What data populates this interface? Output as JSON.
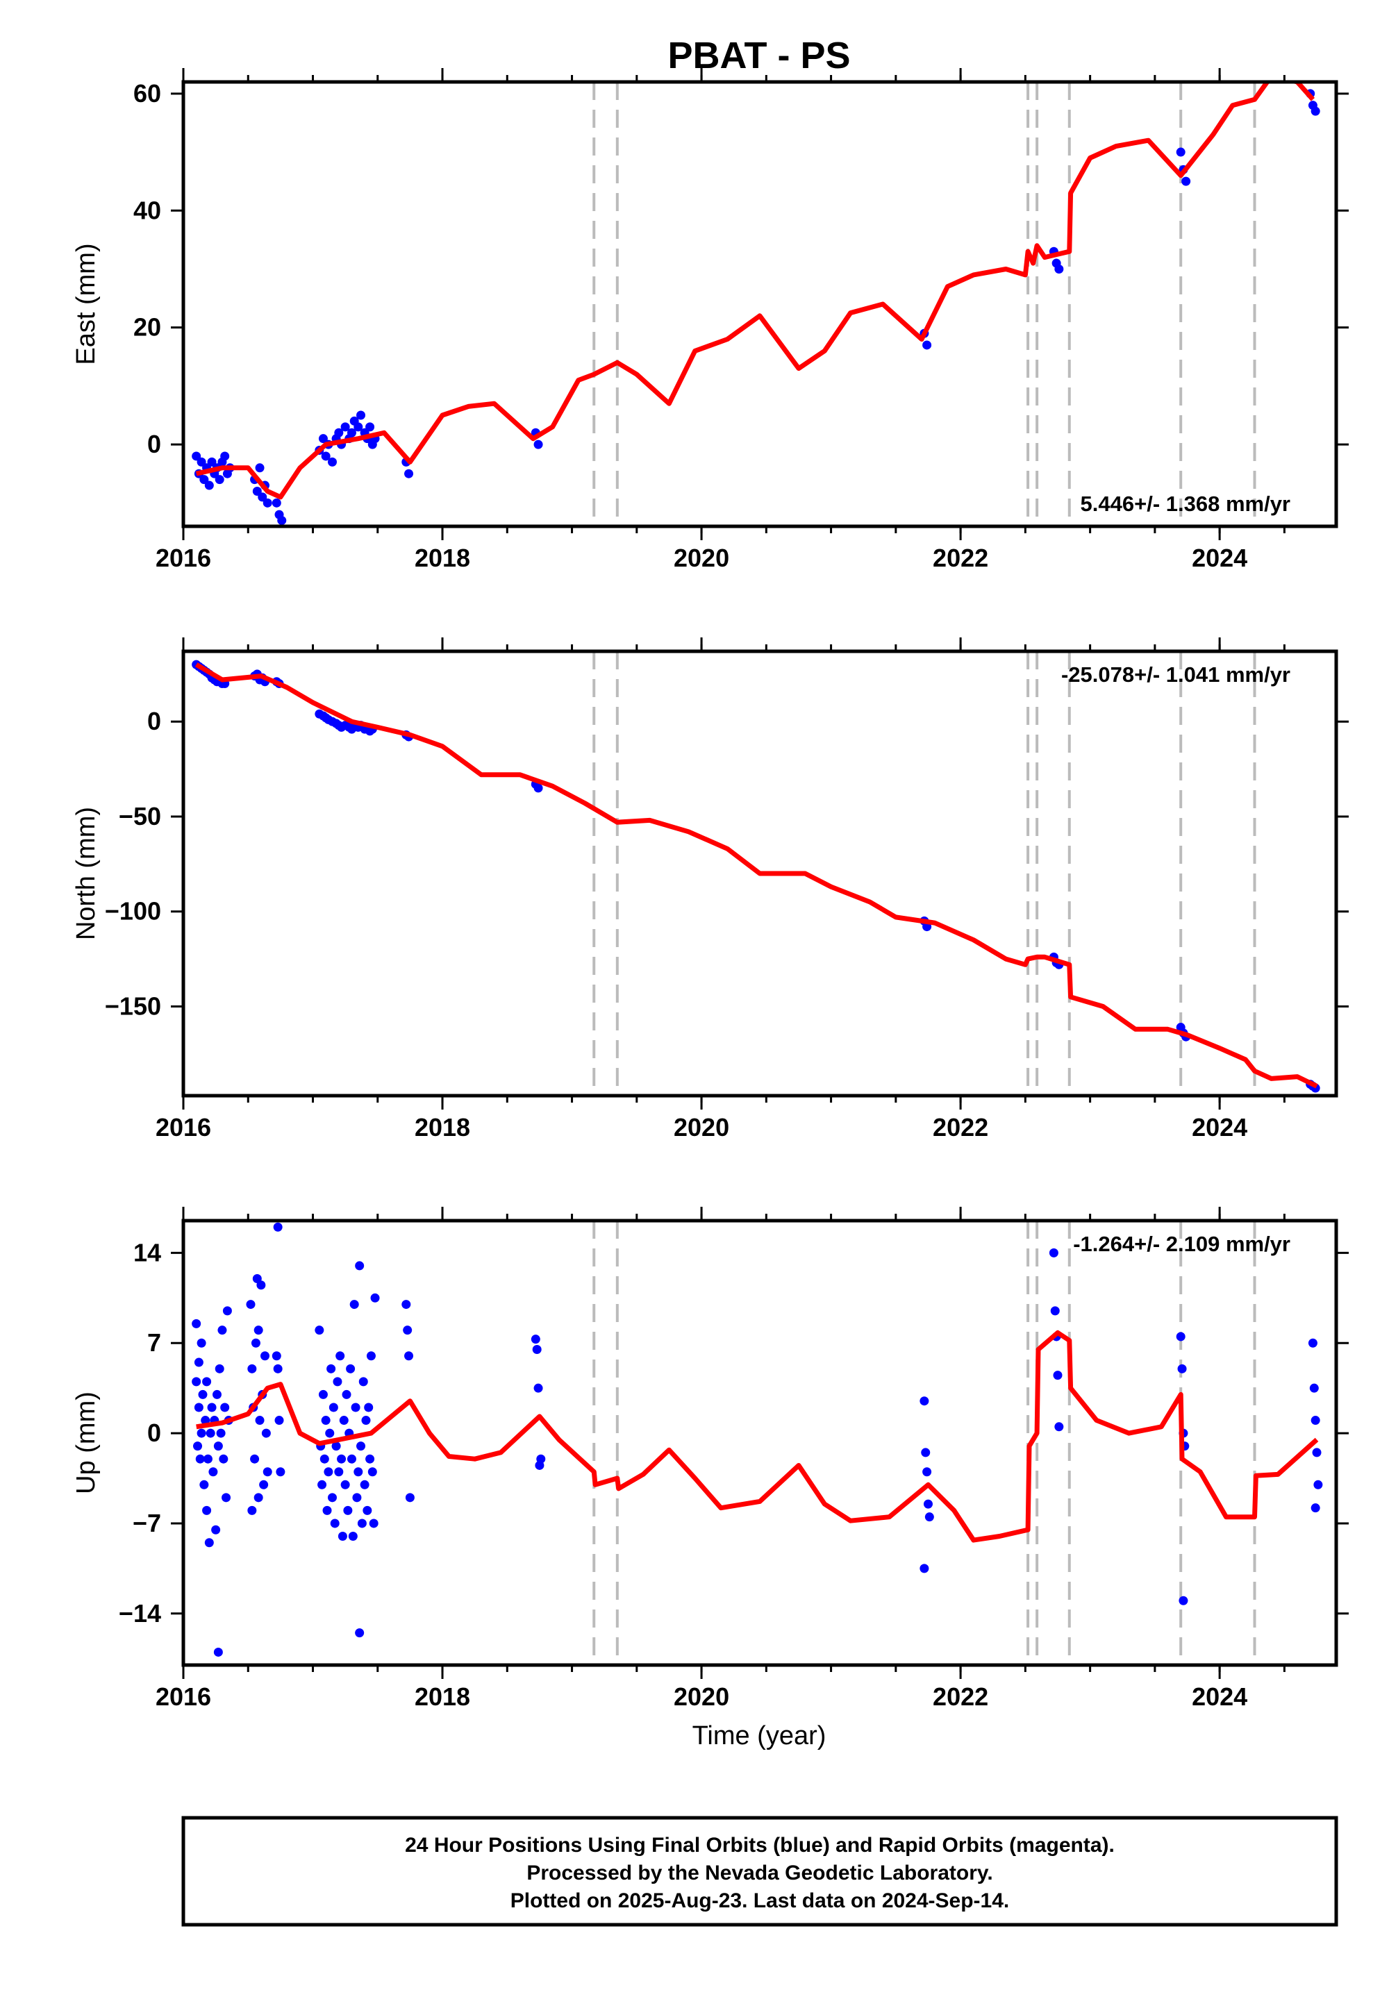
{
  "title": "PBAT - PS",
  "footer": {
    "line1": "24 Hour Positions Using Final Orbits (blue) and Rapid Orbits (magenta).",
    "line2": "Processed by the Nevada Geodetic Laboratory.",
    "line3": "Plotted on 2025-Aug-23. Last data on 2024-Sep-14."
  },
  "colors": {
    "data": "#0000ff",
    "model": "#ff0000",
    "steps": "#bbbbbb",
    "frame": "#000000"
  },
  "chart_data": [
    {
      "type": "scatter",
      "component": "east",
      "ylabel": "East (mm)",
      "xlabel": "",
      "rate_label": "5.446+/- 1.368 mm/yr",
      "rate_position": "bottom-right",
      "xlim": [
        2016.0,
        2024.9
      ],
      "ylim": [
        -14,
        62
      ],
      "xticks": [
        2016,
        2018,
        2020,
        2022,
        2024
      ],
      "yticks": [
        0,
        20,
        40,
        60
      ],
      "steps": [
        2019.17,
        2019.35,
        2022.52,
        2022.59,
        2022.84,
        2023.7,
        2024.27
      ],
      "model": {
        "x": [
          2016.1,
          2016.3,
          2016.5,
          2016.65,
          2016.75,
          2016.9,
          2017.1,
          2017.35,
          2017.55,
          2017.75,
          2018.0,
          2018.2,
          2018.4,
          2018.7,
          2018.85,
          2019.05,
          2019.17,
          2019.35,
          2019.5,
          2019.75,
          2019.95,
          2020.2,
          2020.45,
          2020.75,
          2020.95,
          2021.15,
          2021.4,
          2021.7,
          2021.9,
          2022.1,
          2022.35,
          2022.5,
          2022.52,
          2022.56,
          2022.59,
          2022.65,
          2022.84,
          2022.85,
          2023.0,
          2023.2,
          2023.45,
          2023.7,
          2023.95,
          2024.1,
          2024.27,
          2024.4,
          2024.6,
          2024.72
        ],
        "y": [
          -5,
          -4,
          -4,
          -8,
          -9,
          -4,
          0,
          1,
          2,
          -3,
          5,
          6.5,
          7,
          1,
          3,
          11,
          12,
          14,
          12,
          7,
          16,
          18,
          22,
          13,
          16,
          22.5,
          24,
          18,
          27,
          29,
          30,
          29,
          33,
          31,
          34,
          32,
          33,
          43,
          49,
          51,
          52,
          46,
          53,
          58,
          59,
          63,
          62,
          59
        ]
      },
      "points": [
        [
          2016.1,
          -2
        ],
        [
          2016.12,
          -5
        ],
        [
          2016.14,
          -3
        ],
        [
          2016.16,
          -6
        ],
        [
          2016.18,
          -4
        ],
        [
          2016.2,
          -7
        ],
        [
          2016.22,
          -3
        ],
        [
          2016.24,
          -5
        ],
        [
          2016.26,
          -4
        ],
        [
          2016.28,
          -6
        ],
        [
          2016.3,
          -3
        ],
        [
          2016.32,
          -2
        ],
        [
          2016.34,
          -5
        ],
        [
          2016.36,
          -4
        ],
        [
          2016.55,
          -6
        ],
        [
          2016.57,
          -8
        ],
        [
          2016.59,
          -4
        ],
        [
          2016.61,
          -9
        ],
        [
          2016.63,
          -7
        ],
        [
          2016.65,
          -10
        ],
        [
          2016.72,
          -10
        ],
        [
          2016.74,
          -12
        ],
        [
          2016.76,
          -13
        ],
        [
          2017.05,
          -1
        ],
        [
          2017.08,
          1
        ],
        [
          2017.1,
          -2
        ],
        [
          2017.12,
          0
        ],
        [
          2017.15,
          -3
        ],
        [
          2017.18,
          1
        ],
        [
          2017.2,
          2
        ],
        [
          2017.22,
          0
        ],
        [
          2017.25,
          3
        ],
        [
          2017.28,
          1
        ],
        [
          2017.3,
          2
        ],
        [
          2017.32,
          4
        ],
        [
          2017.35,
          3
        ],
        [
          2017.37,
          5
        ],
        [
          2017.4,
          2
        ],
        [
          2017.42,
          1
        ],
        [
          2017.44,
          3
        ],
        [
          2017.46,
          0
        ],
        [
          2017.48,
          1
        ],
        [
          2017.72,
          -3
        ],
        [
          2017.74,
          -5
        ],
        [
          2018.72,
          2
        ],
        [
          2018.74,
          0
        ],
        [
          2021.72,
          19
        ],
        [
          2021.74,
          17
        ],
        [
          2022.72,
          33
        ],
        [
          2022.74,
          31
        ],
        [
          2022.76,
          30
        ],
        [
          2023.7,
          50
        ],
        [
          2023.72,
          47
        ],
        [
          2023.74,
          45
        ],
        [
          2024.7,
          60
        ],
        [
          2024.72,
          58
        ],
        [
          2024.74,
          57
        ]
      ]
    },
    {
      "type": "scatter",
      "component": "north",
      "ylabel": "North (mm)",
      "xlabel": "",
      "rate_label": "-25.078+/- 1.041 mm/yr",
      "rate_position": "top-right",
      "xlim": [
        2016.0,
        2024.9
      ],
      "ylim": [
        -197,
        37
      ],
      "xticks": [
        2016,
        2018,
        2020,
        2022,
        2024
      ],
      "yticks": [
        0,
        -50,
        -100,
        -150
      ],
      "steps": [
        2019.17,
        2019.35,
        2022.52,
        2022.59,
        2022.84,
        2023.7,
        2024.27
      ],
      "model": {
        "x": [
          2016.1,
          2016.3,
          2016.6,
          2016.8,
          2017.0,
          2017.3,
          2017.5,
          2017.75,
          2018.0,
          2018.3,
          2018.6,
          2018.85,
          2019.1,
          2019.35,
          2019.6,
          2019.9,
          2020.2,
          2020.45,
          2020.8,
          2021.0,
          2021.3,
          2021.5,
          2021.8,
          2022.1,
          2022.35,
          2022.5,
          2022.52,
          2022.59,
          2022.65,
          2022.84,
          2022.85,
          2023.1,
          2023.35,
          2023.6,
          2023.75,
          2024.0,
          2024.2,
          2024.27,
          2024.4,
          2024.6,
          2024.75
        ],
        "y": [
          30,
          22,
          24,
          18,
          10,
          0,
          -3,
          -7,
          -13,
          -28,
          -28,
          -34,
          -43,
          -53,
          -52,
          -58,
          -67,
          -80,
          -80,
          -87,
          -95,
          -103,
          -106,
          -115,
          -125,
          -128,
          -125,
          -124,
          -124,
          -128,
          -145,
          -150,
          -162,
          -162,
          -165,
          -172,
          -178,
          -184,
          -188,
          -187,
          -192
        ]
      },
      "points": [
        [
          2016.1,
          30
        ],
        [
          2016.12,
          29
        ],
        [
          2016.14,
          28
        ],
        [
          2016.16,
          27
        ],
        [
          2016.18,
          26
        ],
        [
          2016.2,
          25
        ],
        [
          2016.22,
          23
        ],
        [
          2016.24,
          22
        ],
        [
          2016.26,
          21
        ],
        [
          2016.28,
          21
        ],
        [
          2016.3,
          20
        ],
        [
          2016.32,
          20
        ],
        [
          2016.55,
          24
        ],
        [
          2016.57,
          25
        ],
        [
          2016.59,
          22
        ],
        [
          2016.61,
          23
        ],
        [
          2016.63,
          21
        ],
        [
          2016.72,
          21
        ],
        [
          2016.74,
          20
        ],
        [
          2017.05,
          4
        ],
        [
          2017.08,
          3
        ],
        [
          2017.1,
          2
        ],
        [
          2017.12,
          1
        ],
        [
          2017.15,
          0
        ],
        [
          2017.18,
          -1
        ],
        [
          2017.2,
          -2
        ],
        [
          2017.22,
          -3
        ],
        [
          2017.25,
          -2
        ],
        [
          2017.28,
          -3
        ],
        [
          2017.3,
          -4
        ],
        [
          2017.32,
          -2
        ],
        [
          2017.35,
          -3
        ],
        [
          2017.37,
          -2
        ],
        [
          2017.4,
          -4
        ],
        [
          2017.42,
          -3
        ],
        [
          2017.44,
          -5
        ],
        [
          2017.46,
          -4
        ],
        [
          2017.72,
          -7
        ],
        [
          2017.74,
          -8
        ],
        [
          2018.72,
          -33
        ],
        [
          2018.74,
          -35
        ],
        [
          2021.72,
          -105
        ],
        [
          2021.74,
          -108
        ],
        [
          2022.72,
          -124
        ],
        [
          2022.74,
          -127
        ],
        [
          2022.76,
          -128
        ],
        [
          2023.7,
          -161
        ],
        [
          2023.72,
          -164
        ],
        [
          2023.74,
          -166
        ],
        [
          2024.7,
          -191
        ],
        [
          2024.72,
          -192
        ],
        [
          2024.74,
          -193
        ]
      ]
    },
    {
      "type": "scatter",
      "component": "up",
      "ylabel": "Up (mm)",
      "xlabel": "Time (year)",
      "rate_label": "-1.264+/- 2.109 mm/yr",
      "rate_position": "top-right",
      "xlim": [
        2016.0,
        2024.9
      ],
      "ylim": [
        -18,
        16.5
      ],
      "xticks": [
        2016,
        2018,
        2020,
        2022,
        2024
      ],
      "yticks": [
        14,
        7,
        0,
        -7,
        -14
      ],
      "yticklabels": [
        "14",
        "7",
        "0",
        "−7",
        "−14"
      ],
      "steps": [
        2019.17,
        2019.35,
        2022.52,
        2022.59,
        2022.84,
        2023.7,
        2024.27
      ],
      "model": {
        "x": [
          2016.1,
          2016.3,
          2016.5,
          2016.65,
          2016.75,
          2016.9,
          2017.05,
          2017.2,
          2017.45,
          2017.75,
          2017.9,
          2018.05,
          2018.25,
          2018.45,
          2018.75,
          2018.9,
          2019.17,
          2019.18,
          2019.35,
          2019.36,
          2019.55,
          2019.75,
          2019.95,
          2020.15,
          2020.45,
          2020.75,
          2020.95,
          2021.15,
          2021.45,
          2021.75,
          2021.95,
          2022.1,
          2022.3,
          2022.52,
          2022.53,
          2022.59,
          2022.6,
          2022.75,
          2022.84,
          2022.85,
          2023.05,
          2023.3,
          2023.55,
          2023.7,
          2023.71,
          2023.85,
          2024.05,
          2024.27,
          2024.28,
          2024.45,
          2024.75
        ],
        "y": [
          0.5,
          0.8,
          1.5,
          3.5,
          3.8,
          0,
          -0.8,
          -0.5,
          0,
          2.5,
          0,
          -1.8,
          -2,
          -1.5,
          1.3,
          -0.5,
          -3,
          -4,
          -3.5,
          -4.3,
          -3.2,
          -1.3,
          -3.5,
          -5.8,
          -5.3,
          -2.5,
          -5.5,
          -6.8,
          -6.5,
          -4,
          -6,
          -8.3,
          -8,
          -7.5,
          -1,
          0,
          6.5,
          7.8,
          7.2,
          3.5,
          1,
          0,
          0.5,
          3,
          -2,
          -3,
          -6.5,
          -6.5,
          -3.3,
          -3.2,
          -0.5
        ]
      },
      "points": [
        [
          2016.1,
          8.5
        ],
        [
          2016.1,
          4
        ],
        [
          2016.11,
          -1
        ],
        [
          2016.12,
          5.5
        ],
        [
          2016.12,
          2
        ],
        [
          2016.13,
          -2
        ],
        [
          2016.14,
          7
        ],
        [
          2016.14,
          0
        ],
        [
          2016.15,
          3
        ],
        [
          2016.16,
          -4
        ],
        [
          2016.17,
          1
        ],
        [
          2016.18,
          -6
        ],
        [
          2016.18,
          4
        ],
        [
          2016.19,
          -2
        ],
        [
          2016.2,
          -8.5
        ],
        [
          2016.21,
          0
        ],
        [
          2016.22,
          2
        ],
        [
          2016.23,
          -3
        ],
        [
          2016.24,
          1
        ],
        [
          2016.25,
          -7.5
        ],
        [
          2016.26,
          3
        ],
        [
          2016.27,
          -1
        ],
        [
          2016.28,
          5
        ],
        [
          2016.29,
          0
        ],
        [
          2016.3,
          8
        ],
        [
          2016.31,
          -2
        ],
        [
          2016.32,
          2
        ],
        [
          2016.33,
          -5
        ],
        [
          2016.34,
          9.5
        ],
        [
          2016.35,
          1
        ],
        [
          2016.27,
          -17
        ],
        [
          2016.52,
          10
        ],
        [
          2016.53,
          5
        ],
        [
          2016.54,
          2
        ],
        [
          2016.55,
          -2
        ],
        [
          2016.56,
          7
        ],
        [
          2016.57,
          12
        ],
        [
          2016.58,
          -5
        ],
        [
          2016.59,
          1
        ],
        [
          2016.6,
          11.5
        ],
        [
          2016.61,
          3
        ],
        [
          2016.62,
          -4
        ],
        [
          2016.63,
          6
        ],
        [
          2016.64,
          0
        ],
        [
          2016.65,
          -3
        ],
        [
          2016.53,
          -6
        ],
        [
          2016.58,
          8
        ],
        [
          2016.72,
          6
        ],
        [
          2016.73,
          5
        ],
        [
          2016.74,
          1
        ],
        [
          2016.75,
          -3
        ],
        [
          2016.73,
          16
        ],
        [
          2017.05,
          8
        ],
        [
          2017.06,
          -1
        ],
        [
          2017.07,
          -4
        ],
        [
          2017.08,
          3
        ],
        [
          2017.09,
          -2
        ],
        [
          2017.1,
          1
        ],
        [
          2017.11,
          -6
        ],
        [
          2017.12,
          -3
        ],
        [
          2017.13,
          0
        ],
        [
          2017.14,
          5
        ],
        [
          2017.15,
          -5
        ],
        [
          2017.16,
          2
        ],
        [
          2017.17,
          -7
        ],
        [
          2017.18,
          -1
        ],
        [
          2017.19,
          4
        ],
        [
          2017.2,
          -3
        ],
        [
          2017.21,
          6
        ],
        [
          2017.22,
          -2
        ],
        [
          2017.23,
          -8
        ],
        [
          2017.24,
          1
        ],
        [
          2017.25,
          -4
        ],
        [
          2017.26,
          3
        ],
        [
          2017.27,
          -6
        ],
        [
          2017.28,
          0
        ],
        [
          2017.29,
          5
        ],
        [
          2017.3,
          -2
        ],
        [
          2017.31,
          -8
        ],
        [
          2017.32,
          10
        ],
        [
          2017.33,
          2
        ],
        [
          2017.34,
          -5
        ],
        [
          2017.35,
          -3
        ],
        [
          2017.36,
          13
        ],
        [
          2017.37,
          -1
        ],
        [
          2017.38,
          -7
        ],
        [
          2017.39,
          4
        ],
        [
          2017.4,
          -4
        ],
        [
          2017.41,
          1
        ],
        [
          2017.42,
          -6
        ],
        [
          2017.43,
          2
        ],
        [
          2017.44,
          -2
        ],
        [
          2017.45,
          6
        ],
        [
          2017.46,
          -3
        ],
        [
          2017.47,
          -7
        ],
        [
          2017.48,
          10.5
        ],
        [
          2017.36,
          -15.5
        ],
        [
          2017.72,
          10
        ],
        [
          2017.73,
          8
        ],
        [
          2017.74,
          6
        ],
        [
          2017.75,
          -5
        ],
        [
          2018.72,
          7.3
        ],
        [
          2018.73,
          6.5
        ],
        [
          2018.74,
          3.5
        ],
        [
          2018.75,
          -2.5
        ],
        [
          2018.76,
          -2
        ],
        [
          2021.72,
          2.5
        ],
        [
          2021.73,
          -1.5
        ],
        [
          2021.74,
          -3
        ],
        [
          2021.75,
          -5.5
        ],
        [
          2021.76,
          -6.5
        ],
        [
          2021.72,
          -10.5
        ],
        [
          2022.72,
          14
        ],
        [
          2022.73,
          9.5
        ],
        [
          2022.74,
          7.5
        ],
        [
          2022.75,
          4.5
        ],
        [
          2022.76,
          0.5
        ],
        [
          2023.7,
          7.5
        ],
        [
          2023.71,
          5
        ],
        [
          2023.72,
          0
        ],
        [
          2023.73,
          -1
        ],
        [
          2023.72,
          -13
        ],
        [
          2024.72,
          7
        ],
        [
          2024.73,
          3.5
        ],
        [
          2024.74,
          1
        ],
        [
          2024.75,
          -1.5
        ],
        [
          2024.76,
          -4
        ],
        [
          2024.74,
          -5.8
        ]
      ]
    }
  ]
}
